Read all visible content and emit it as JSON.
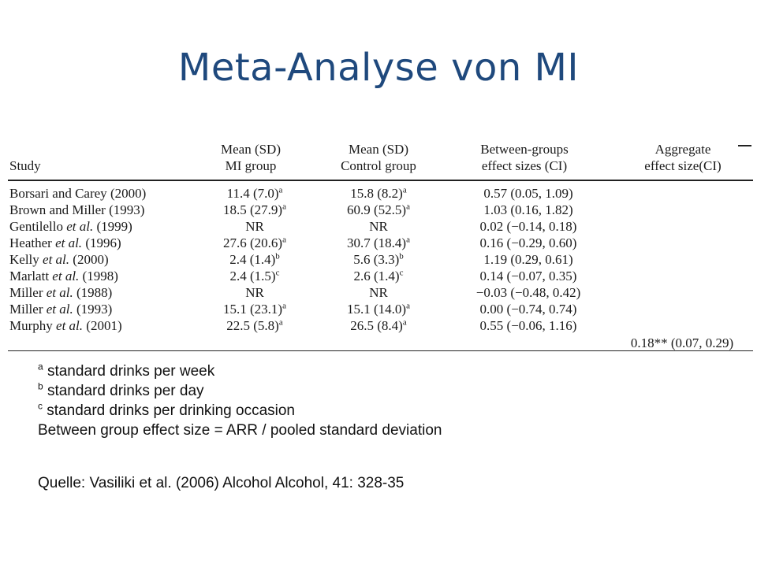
{
  "title": "Meta-Analyse von MI",
  "table": {
    "headers": {
      "study": "Study",
      "mi_line1": "Mean (SD)",
      "mi_line2": "MI group",
      "ctrl_line1": "Mean (SD)",
      "ctrl_line2": "Control group",
      "bg_line1": "Between-groups",
      "bg_line2": "effect sizes (CI)",
      "agg_line1": "Aggregate",
      "agg_line2": "effect size(CI)"
    },
    "rows": [
      {
        "study_name": "Borsari and Carey",
        "study_italic": "",
        "study_year": " (2000)",
        "mi": "11.4 (7.0)",
        "mi_sup": "a",
        "ctrl": "15.8 (8.2)",
        "ctrl_sup": "a",
        "effect": "0.57 (0.05, 1.09)"
      },
      {
        "study_name": "Brown and Miller",
        "study_italic": "",
        "study_year": " (1993)",
        "mi": "18.5 (27.9)",
        "mi_sup": "a",
        "ctrl": "60.9 (52.5)",
        "ctrl_sup": "a",
        "effect": "1.03 (0.16, 1.82)"
      },
      {
        "study_name": "Gentilello ",
        "study_italic": "et al.",
        "study_year": " (1999)",
        "mi": "NR",
        "mi_sup": "",
        "ctrl": "NR",
        "ctrl_sup": "",
        "effect": "0.02 (−0.14, 0.18)"
      },
      {
        "study_name": "Heather ",
        "study_italic": "et al.",
        "study_year": " (1996)",
        "mi": "27.6 (20.6)",
        "mi_sup": "a",
        "ctrl": "30.7 (18.4)",
        "ctrl_sup": "a",
        "effect": "0.16 (−0.29, 0.60)"
      },
      {
        "study_name": "Kelly ",
        "study_italic": "et al.",
        "study_year": " (2000)",
        "mi": "2.4 (1.4)",
        "mi_sup": "b",
        "ctrl": "5.6 (3.3)",
        "ctrl_sup": "b",
        "effect": "1.19 (0.29, 0.61)"
      },
      {
        "study_name": "Marlatt ",
        "study_italic": "et al.",
        "study_year": " (1998)",
        "mi": "2.4 (1.5)",
        "mi_sup": "c",
        "ctrl": "2.6 (1.4)",
        "ctrl_sup": "c",
        "effect": "0.14 (−0.07, 0.35)"
      },
      {
        "study_name": "Miller ",
        "study_italic": "et al.",
        "study_year": " (1988)",
        "mi": "NR",
        "mi_sup": "",
        "ctrl": "NR",
        "ctrl_sup": "",
        "effect": "−0.03 (−0.48, 0.42)"
      },
      {
        "study_name": "Miller ",
        "study_italic": "et al.",
        "study_year": " (1993)",
        "mi": "15.1 (23.1)",
        "mi_sup": "a",
        "ctrl": "15.1 (14.0)",
        "ctrl_sup": "a",
        "effect": "0.00 (−0.74, 0.74)"
      },
      {
        "study_name": "Murphy ",
        "study_italic": "et al.",
        "study_year": " (2001)",
        "mi": "22.5 (5.8)",
        "mi_sup": "a",
        "ctrl": "26.5 (8.4)",
        "ctrl_sup": "a",
        "effect": "0.55 (−0.06, 1.16)"
      }
    ],
    "aggregate": "0.18** (0.07, 0.29)"
  },
  "notes": [
    {
      "sup": "a",
      "text": " standard drinks per week"
    },
    {
      "sup": "b",
      "text": " standard drinks per day"
    },
    {
      "sup": "c",
      "text": " standard drinks per drinking occasion"
    },
    {
      "sup": "",
      "text": "Between group effect size = ARR / pooled standard deviation"
    }
  ],
  "source": "Quelle: Vasiliki et al. (2006) Alcohol Alcohol, 41: 328-35"
}
